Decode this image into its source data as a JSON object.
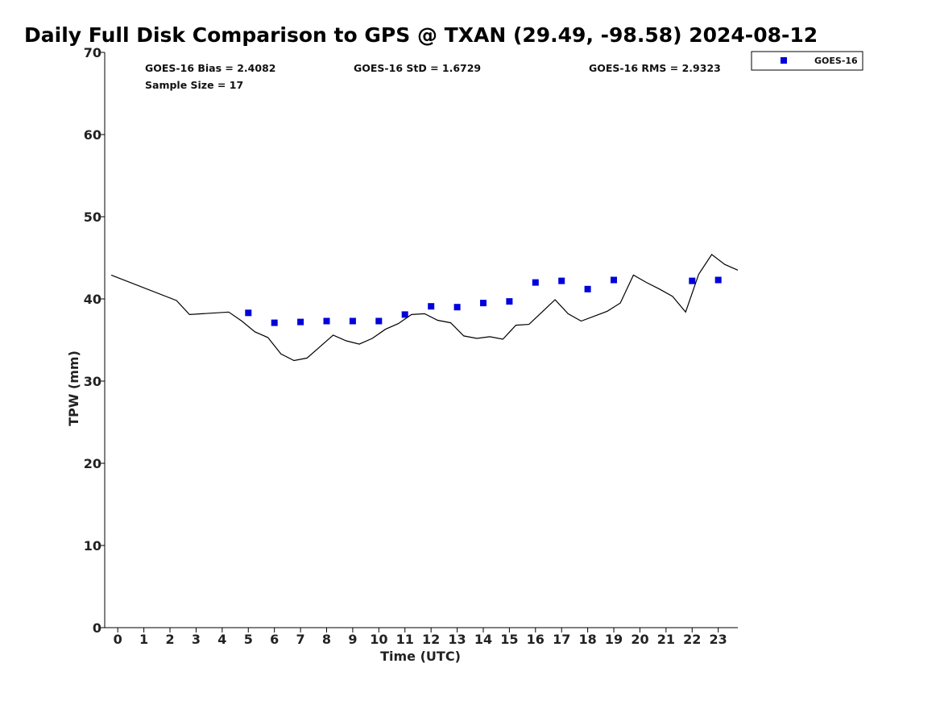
{
  "chart_data": {
    "type": "scatter",
    "title": "Daily Full Disk Comparison to GPS @ TXAN (29.49, -98.58) 2024-08-12",
    "xlabel": "Time (UTC)",
    "ylabel": "TPW (mm)",
    "xlim": [
      -0.5,
      23.75
    ],
    "ylim": [
      0,
      70
    ],
    "xticks": [
      "0",
      "1",
      "2",
      "3",
      "4",
      "5",
      "6",
      "7",
      "8",
      "9",
      "10",
      "11",
      "12",
      "13",
      "14",
      "15",
      "16",
      "17",
      "18",
      "19",
      "20",
      "21",
      "22",
      "23"
    ],
    "yticks": [
      "0",
      "10",
      "20",
      "30",
      "40",
      "50",
      "60",
      "70"
    ],
    "grid": false,
    "legend": {
      "placement": "top-right outside",
      "entries": [
        "GOES-16"
      ]
    },
    "annotations": {
      "bias": "GOES-16 Bias = 2.4082",
      "std": "GOES-16 StD = 1.6729",
      "rms": "GOES-16 RMS = 2.9323",
      "sample": "Sample Size = 17"
    },
    "series": [
      {
        "name": "GOES-16",
        "kind": "scatter",
        "color": "#0000dd",
        "x": [
          5,
          6,
          7,
          8,
          9,
          10,
          11,
          12,
          13,
          14,
          15,
          16,
          17,
          18,
          19,
          22,
          23
        ],
        "y": [
          38.3,
          37.1,
          37.2,
          37.3,
          37.3,
          37.3,
          38.1,
          39.1,
          39.0,
          39.5,
          39.7,
          42.0,
          42.2,
          41.2,
          42.3,
          42.2,
          42.3
        ]
      },
      {
        "kind": "line",
        "color": "#000000",
        "x": [
          -0.25,
          2.25,
          2.75,
          4.25,
          4.75,
          5.25,
          5.75,
          6.25,
          6.75,
          7.25,
          7.75,
          8.25,
          8.75,
          9.25,
          9.75,
          10.25,
          10.75,
          11.25,
          11.75,
          12.25,
          12.75,
          13.25,
          13.75,
          14.25,
          14.75,
          15.25,
          15.75,
          16.25,
          16.75,
          17.25,
          17.75,
          18.25,
          18.75,
          19.25,
          19.75,
          20.25,
          20.75,
          21.25,
          21.75,
          22.25,
          22.75,
          23.25,
          23.75
        ],
        "y": [
          42.9,
          39.8,
          38.1,
          38.4,
          37.3,
          36.0,
          35.3,
          33.3,
          32.5,
          32.8,
          34.2,
          35.6,
          34.9,
          34.5,
          35.2,
          36.3,
          37.0,
          38.1,
          38.2,
          37.4,
          37.1,
          35.5,
          35.2,
          35.4,
          35.1,
          36.8,
          36.9,
          38.4,
          39.9,
          38.2,
          37.3,
          37.9,
          38.5,
          39.5,
          42.9,
          42.0,
          41.2,
          40.3,
          38.4,
          43.0,
          45.4,
          44.2,
          43.5
        ]
      }
    ]
  }
}
